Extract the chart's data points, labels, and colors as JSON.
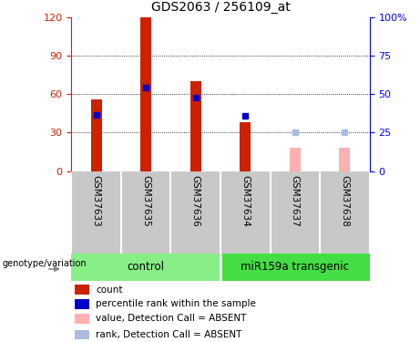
{
  "title": "GDS2063 / 256109_at",
  "samples": [
    "GSM37633",
    "GSM37635",
    "GSM37636",
    "GSM37634",
    "GSM37637",
    "GSM37638"
  ],
  "red_bars": [
    56,
    120,
    70,
    38,
    0,
    0
  ],
  "blue_markers": [
    44,
    65,
    57,
    43,
    0,
    0
  ],
  "pink_bars": [
    0,
    0,
    0,
    0,
    18,
    18
  ],
  "lightblue_markers": [
    0,
    0,
    0,
    0,
    30,
    30
  ],
  "absent_mask": [
    false,
    false,
    false,
    false,
    true,
    true
  ],
  "ylim_left": [
    0,
    120
  ],
  "ylim_right": [
    0,
    100
  ],
  "yticks_left": [
    0,
    30,
    60,
    90,
    120
  ],
  "yticks_right": [
    0,
    25,
    50,
    75,
    100
  ],
  "ytick_labels_right": [
    "0",
    "25",
    "50",
    "75",
    "100%"
  ],
  "bar_color_red": "#CC2200",
  "bar_color_pink": "#FFB0B0",
  "marker_color_blue": "#0000CC",
  "marker_color_lightblue": "#AABBDD",
  "bg_color": "#FFFFFF",
  "label_area_color": "#C8C8C8",
  "group_control_color": "#88EE88",
  "group_transgenic_color": "#44DD44",
  "legend_items": [
    {
      "label": "count",
      "color": "#CC2200"
    },
    {
      "label": "percentile rank within the sample",
      "color": "#0000CC"
    },
    {
      "label": "value, Detection Call = ABSENT",
      "color": "#FFB0B0"
    },
    {
      "label": "rank, Detection Call = ABSENT",
      "color": "#AABBDD"
    }
  ]
}
